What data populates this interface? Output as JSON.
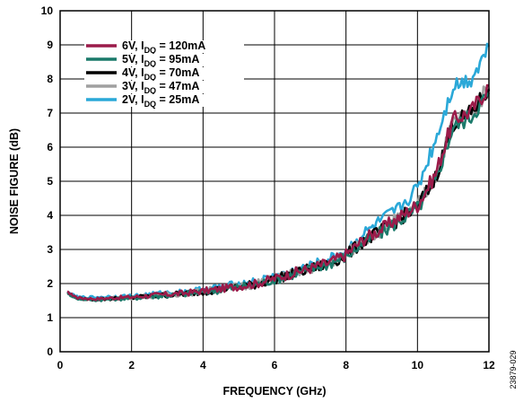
{
  "chart_data": {
    "type": "line",
    "xlabel": "FREQUENCY (GHz)",
    "ylabel": "NOISE FIGURE (dB)",
    "xlim": [
      0,
      12
    ],
    "ylim": [
      0,
      10
    ],
    "xticks": [
      0,
      2,
      4,
      6,
      8,
      10,
      12
    ],
    "yticks": [
      0,
      1,
      2,
      3,
      4,
      5,
      6,
      7,
      8,
      9,
      10
    ],
    "grid": true,
    "legend_position": "top-left",
    "figure_id": "23879-029",
    "x": [
      0.2,
      0.5,
      1,
      1.5,
      2,
      2.5,
      3,
      3.5,
      4,
      4.5,
      5,
      5.5,
      6,
      6.5,
      7,
      7.5,
      8,
      8.5,
      9,
      9.5,
      10,
      10.5,
      11,
      11.5,
      12
    ],
    "series": [
      {
        "name": "6V, I_DQ = 120mA",
        "label_main": "6V, I",
        "label_sub": "DQ",
        "label_rest": " = 120mA",
        "color": "#9b1b4a",
        "values": [
          1.75,
          1.58,
          1.55,
          1.58,
          1.6,
          1.65,
          1.68,
          1.72,
          1.78,
          1.85,
          1.92,
          2.0,
          2.15,
          2.3,
          2.45,
          2.6,
          2.85,
          3.3,
          3.6,
          3.95,
          4.3,
          5.2,
          6.8,
          7.05,
          7.8
        ]
      },
      {
        "name": "5V, I_DQ = 95mA",
        "label_main": "5V, I",
        "label_sub": "DQ",
        "label_rest": " = 95mA",
        "color": "#1a7a6a",
        "values": [
          1.7,
          1.55,
          1.52,
          1.55,
          1.57,
          1.62,
          1.65,
          1.7,
          1.75,
          1.82,
          1.9,
          1.97,
          2.12,
          2.27,
          2.42,
          2.57,
          2.8,
          3.2,
          3.5,
          3.85,
          4.2,
          5.0,
          6.6,
          6.9,
          7.6
        ]
      },
      {
        "name": "4V, I_DQ = 70mA",
        "label_main": "4V, I",
        "label_sub": "DQ",
        "label_rest": " = 70mA",
        "color": "#000000",
        "values": [
          1.72,
          1.56,
          1.53,
          1.56,
          1.58,
          1.63,
          1.66,
          1.71,
          1.76,
          1.83,
          1.91,
          1.98,
          2.13,
          2.28,
          2.43,
          2.58,
          2.82,
          3.25,
          3.55,
          3.9,
          4.25,
          5.1,
          6.7,
          7.0,
          7.7
        ]
      },
      {
        "name": "3V, I_DQ = 47mA",
        "label_main": "3V, I",
        "label_sub": "DQ",
        "label_rest": " = 47mA",
        "color": "#a0a0a0",
        "values": [
          1.73,
          1.57,
          1.54,
          1.57,
          1.59,
          1.64,
          1.67,
          1.72,
          1.77,
          1.84,
          1.92,
          1.99,
          2.14,
          2.29,
          2.44,
          2.6,
          2.84,
          3.28,
          3.58,
          3.93,
          4.28,
          5.15,
          6.75,
          7.02,
          7.75
        ]
      },
      {
        "name": "2V, I_DQ = 25mA",
        "label_main": "2V, I",
        "label_sub": "DQ",
        "label_rest": " = 25mA",
        "color": "#2aa8d8",
        "values": [
          1.75,
          1.6,
          1.6,
          1.62,
          1.63,
          1.68,
          1.72,
          1.76,
          1.82,
          1.9,
          1.98,
          2.05,
          2.2,
          2.35,
          2.5,
          2.68,
          2.95,
          3.45,
          3.85,
          4.2,
          4.8,
          6.2,
          7.8,
          8.0,
          8.95
        ]
      }
    ]
  }
}
